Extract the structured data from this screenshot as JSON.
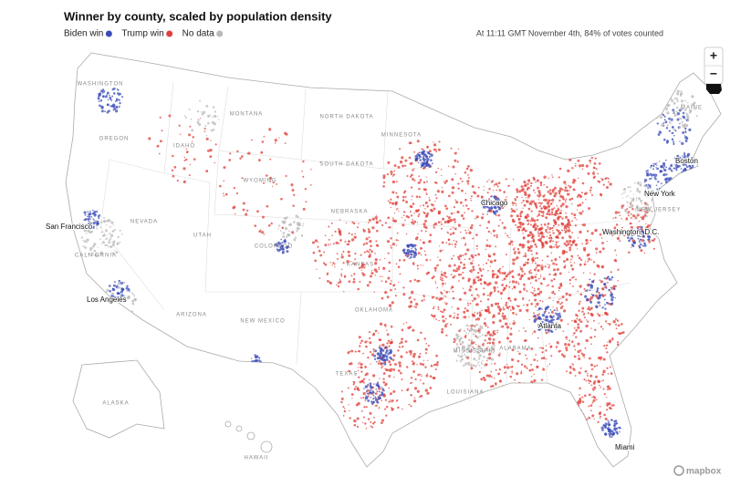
{
  "header": {
    "title": "Winner by county, scaled by population density",
    "timestamp": "At 11:11 GMT November 4th, 84% of votes counted"
  },
  "legend": [
    {
      "label": "Biden win",
      "color": "#3b4cb8"
    },
    {
      "label": "Trump win",
      "color": "#e0403a"
    },
    {
      "label": "No data",
      "color": "#b9b9b9"
    }
  ],
  "map": {
    "cities": [
      "San Francisco",
      "Los Angeles",
      "Chicago",
      "New York",
      "Boston",
      "Washington, D.C.",
      "Atlanta",
      "Miami"
    ],
    "states": [
      "WASHINGTON",
      "OREGON",
      "IDAHO",
      "MONTANA",
      "NORTH DAKOTA",
      "SOUTH DAKOTA",
      "WYOMING",
      "NEVADA",
      "UTAH",
      "COLORADO",
      "NEBRASKA",
      "KANSAS",
      "CALIFORNIA",
      "ARIZONA",
      "NEW MEXICO",
      "OKLAHOMA",
      "TEXAS",
      "MINNESOTA",
      "MISSISSIPPI",
      "ALABAMA",
      "LOUISIANA",
      "MAINE",
      "NEW JERSEY",
      "ALASKA",
      "HAWAII"
    ]
  },
  "controls": {
    "zoom_in": "+",
    "zoom_out": "−"
  },
  "attribution": "mapbox"
}
